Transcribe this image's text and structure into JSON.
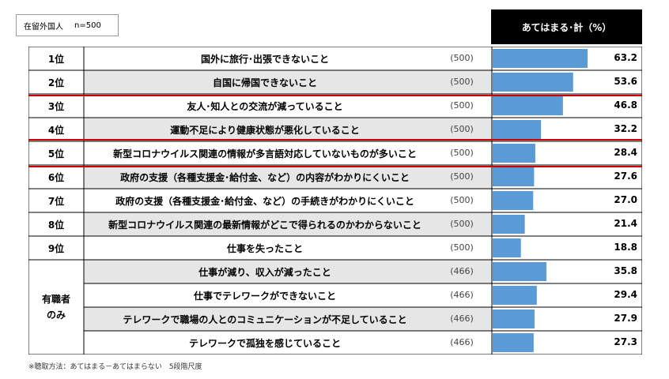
{
  "sample_box": {
    "label": "在留外国人",
    "n": "n=500"
  },
  "header": "あてはまる･計（%）",
  "footnote": "※聴取方法：あてはまる－あてはまらない　5段階尺度",
  "group_label": "有職者\nのみ",
  "colors": {
    "bar": "#5b9bd5",
    "stripe": "#e6e6e6",
    "highlight": "#cc0000",
    "border": "#000000"
  },
  "chart_data": {
    "type": "bar",
    "orientation": "horizontal",
    "xlim": [
      0,
      100
    ],
    "rows": [
      {
        "rank": "1位",
        "label": "国外に旅行･出張できないこと",
        "n": "(500)",
        "value": 63.2,
        "highlight": true
      },
      {
        "rank": "2位",
        "label": "自国に帰国できないこと",
        "n": "(500)",
        "value": 53.6,
        "highlight": true
      },
      {
        "rank": "3位",
        "label": "友人･知人との交流が減っていること",
        "n": "(500)",
        "value": 46.8,
        "highlight": false
      },
      {
        "rank": "4位",
        "label": "運動不足により健康状態が悪化していること",
        "n": "(500)",
        "value": 32.2,
        "highlight": false
      },
      {
        "rank": "5位",
        "label": "新型コロナウイルス関連の情報が多言語対応していないものが多いこと",
        "n": "(500)",
        "value": 28.4,
        "highlight": true
      },
      {
        "rank": "6位",
        "label": "政府の支援（各種支援金･給付金、など）の内容がわかりにくいこと",
        "n": "(500)",
        "value": 27.6,
        "highlight": false
      },
      {
        "rank": "7位",
        "label": "政府の支援（各種支援金･給付金、など）の手続きがわかりにくいこと",
        "n": "(500)",
        "value": 27.0,
        "highlight": false
      },
      {
        "rank": "8位",
        "label": "新型コロナウイルス関連の最新情報がどこで得られるのかわからないこと",
        "n": "(500)",
        "value": 21.4,
        "highlight": false
      },
      {
        "rank": "9位",
        "label": "仕事を失ったこと",
        "n": "(500)",
        "value": 18.8,
        "highlight": false
      },
      {
        "rank": "",
        "label": "仕事が減り、収入が減ったこと",
        "n": "(466)",
        "value": 35.8,
        "highlight": false
      },
      {
        "rank": "",
        "label": "仕事でテレワークができないこと",
        "n": "(466)",
        "value": 29.4,
        "highlight": false
      },
      {
        "rank": "",
        "label": "テレワークで職場の人とのコミュニケーションが不足していること",
        "n": "(466)",
        "value": 27.9,
        "highlight": false
      },
      {
        "rank": "",
        "label": "テレワークで孤独を感じていること",
        "n": "(466)",
        "value": 27.3,
        "highlight": false
      }
    ]
  }
}
